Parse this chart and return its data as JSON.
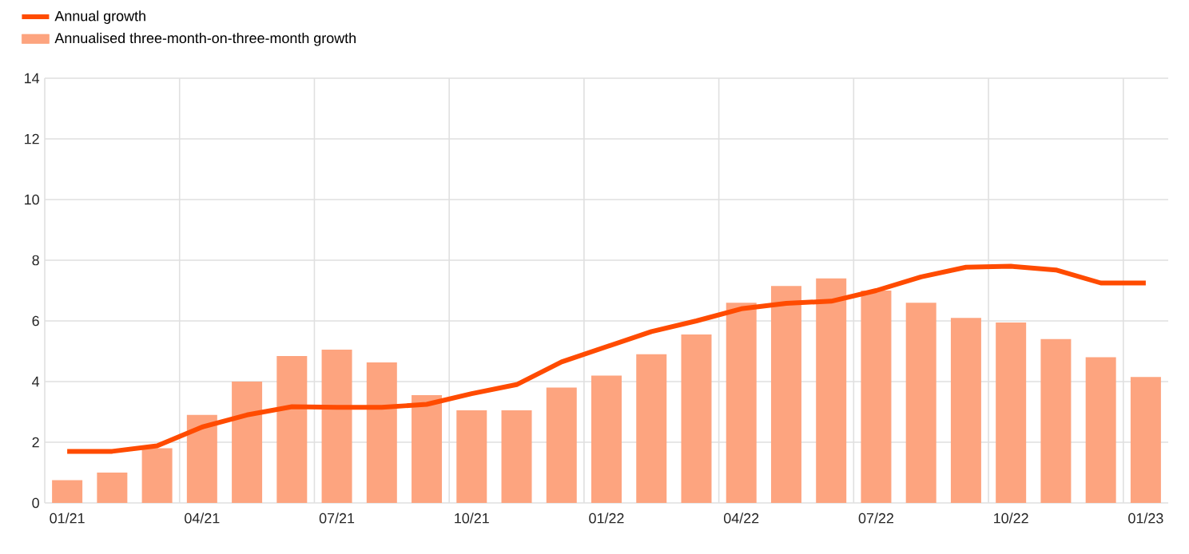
{
  "chart_data": {
    "type": "bar",
    "categories": [
      "01/21",
      null,
      null,
      "04/21",
      null,
      null,
      "07/21",
      null,
      null,
      "10/21",
      null,
      null,
      "01/22",
      null,
      null,
      "04/22",
      null,
      null,
      "07/22",
      null,
      null,
      "10/22",
      null,
      null,
      "01/23"
    ],
    "series": [
      {
        "name": "Annual growth",
        "type": "line",
        "color": "#ff4b00",
        "values": [
          1.7,
          1.7,
          1.88,
          2.5,
          2.9,
          3.17,
          3.15,
          3.15,
          3.25,
          3.6,
          3.9,
          4.65,
          5.15,
          5.65,
          6.0,
          6.4,
          6.58,
          6.65,
          7.0,
          7.45,
          7.77,
          7.8,
          7.68,
          7.25,
          7.25
        ]
      },
      {
        "name": "Annualised three-month-on-three-month growth",
        "color": "#fda47f",
        "values": [
          0.75,
          1.0,
          1.8,
          2.9,
          4.0,
          4.84,
          5.05,
          4.63,
          3.55,
          3.05,
          3.05,
          3.8,
          4.2,
          4.9,
          5.55,
          6.6,
          7.15,
          7.4,
          7.0,
          6.6,
          6.1,
          5.95,
          5.4,
          4.8,
          4.15
        ]
      }
    ],
    "ylim": [
      0,
      14
    ],
    "yticks": [
      0,
      2,
      4,
      6,
      8,
      10,
      12,
      14
    ],
    "grid": true,
    "legend": "top left"
  }
}
